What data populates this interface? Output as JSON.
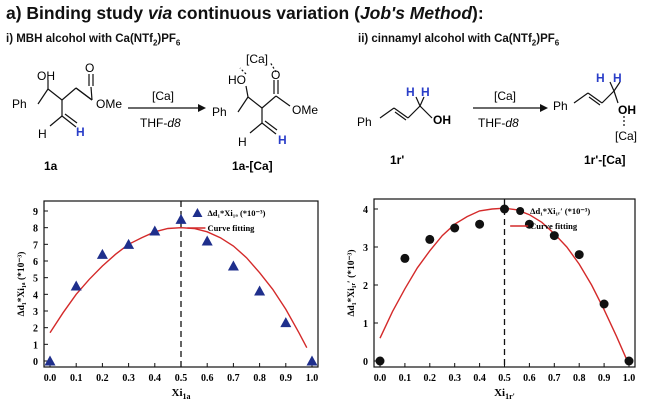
{
  "heading": {
    "prefix": "a) Binding study ",
    "via": "via",
    "middle": " continuous variation (",
    "method": "Job's Method",
    "suffix": "):"
  },
  "scheme": {
    "left": {
      "subtitle_parts": [
        "i) MBH alcohol with Ca(NTf",
        "2",
        ")PF",
        "6"
      ],
      "reagent": "[Ca]",
      "solvent_parts": [
        "THF-",
        "d8"
      ],
      "start_label": "1a",
      "product_label": "1a-[Ca]",
      "atoms": {
        "oh": "OH",
        "ph": "Ph",
        "ome": "OMe",
        "o": "O",
        "h": "H",
        "ho": "HO",
        "ca": "[Ca]"
      }
    },
    "right": {
      "subtitle_parts": [
        "ii) cinnamyl alcohol with Ca(NTf",
        "2",
        ")PF",
        "6"
      ],
      "reagent": "[Ca]",
      "solvent_parts": [
        "THF-",
        "d8"
      ],
      "start_label": "1r'",
      "product_label": "1r'-[Ca]",
      "atoms": {
        "ph": "Ph",
        "h": "H",
        "oh": "OH",
        "ca": "[Ca]"
      }
    }
  },
  "chart_data": [
    {
      "type": "scatter",
      "marker": "triangle",
      "marker_color": "#1f2f8c",
      "fit_color": "#d42a2a",
      "xlabel": "Xi",
      "xlabel_sub": "1a",
      "ylabel": "Δd₁*Xi₁ₐ (*10⁻³)",
      "xlim": [
        0.0,
        1.0
      ],
      "ylim": [
        0,
        9
      ],
      "xticks": [
        "0.0",
        "0.1",
        "0.2",
        "0.3",
        "0.4",
        "0.5",
        "0.6",
        "0.7",
        "0.8",
        "0.9",
        "1.0"
      ],
      "yticks": [
        "0",
        "1",
        "2",
        "3",
        "4",
        "5",
        "6",
        "7",
        "8",
        "9"
      ],
      "legend": [
        {
          "marker": "triangle",
          "label": "Δd₁*Xi₁ₐ (*10⁻³)"
        },
        {
          "marker": "line",
          "label": "Curve fitting"
        }
      ],
      "legend_position": "top-right",
      "vline_x": 0.5,
      "points": {
        "x": [
          0.0,
          0.1,
          0.2,
          0.3,
          0.4,
          0.5,
          0.6,
          0.7,
          0.8,
          0.9,
          1.0
        ],
        "y": [
          0.0,
          4.5,
          6.4,
          7.0,
          7.8,
          8.5,
          7.2,
          5.7,
          4.2,
          2.3,
          0.0
        ]
      },
      "fit": {
        "x": [
          0.0,
          0.05,
          0.1,
          0.15,
          0.2,
          0.25,
          0.3,
          0.35,
          0.4,
          0.45,
          0.5,
          0.55,
          0.6,
          0.65,
          0.7,
          0.75,
          0.8,
          0.85,
          0.9,
          0.95,
          0.98
        ],
        "y": [
          1.7,
          2.9,
          4.0,
          4.9,
          5.7,
          6.4,
          7.0,
          7.4,
          7.75,
          7.95,
          8.0,
          7.95,
          7.75,
          7.4,
          6.9,
          6.2,
          5.3,
          4.3,
          3.1,
          1.7,
          0.8
        ]
      }
    },
    {
      "type": "scatter",
      "marker": "circle",
      "marker_color": "#111111",
      "fit_color": "#d42a2a",
      "xlabel": "Xi",
      "xlabel_sub": "1r'",
      "ylabel": "Δd₁*Xi₁ᵣ′ (*10⁻³)",
      "xlim": [
        0.0,
        1.0
      ],
      "ylim": [
        0,
        4
      ],
      "xticks": [
        "0.0",
        "0.1",
        "0.2",
        "0.3",
        "0.4",
        "0.5",
        "0.6",
        "0.7",
        "0.8",
        "0.9",
        "1.0"
      ],
      "yticks": [
        "0",
        "1",
        "2",
        "3",
        "4"
      ],
      "legend": [
        {
          "marker": "circle",
          "label": "Δd₁*Xi₁ᵣ′ (*10⁻³)"
        },
        {
          "marker": "line",
          "label": "Curve fitting"
        }
      ],
      "legend_position": "top-right",
      "vline_x": 0.5,
      "points": {
        "x": [
          0.0,
          0.1,
          0.2,
          0.3,
          0.4,
          0.5,
          0.6,
          0.7,
          0.8,
          0.9,
          1.0
        ],
        "y": [
          0.0,
          2.7,
          3.2,
          3.5,
          3.6,
          4.0,
          3.6,
          3.3,
          2.8,
          1.5,
          0.0
        ]
      },
      "fit": {
        "x": [
          0.0,
          0.05,
          0.1,
          0.15,
          0.2,
          0.25,
          0.3,
          0.35,
          0.4,
          0.45,
          0.5,
          0.55,
          0.6,
          0.65,
          0.7,
          0.75,
          0.8,
          0.85,
          0.9,
          0.95,
          1.0
        ],
        "y": [
          0.6,
          1.3,
          1.9,
          2.45,
          2.9,
          3.3,
          3.6,
          3.8,
          3.95,
          4.0,
          4.02,
          3.98,
          3.85,
          3.65,
          3.35,
          3.0,
          2.55,
          2.0,
          1.35,
          0.65,
          -0.1
        ]
      }
    }
  ]
}
